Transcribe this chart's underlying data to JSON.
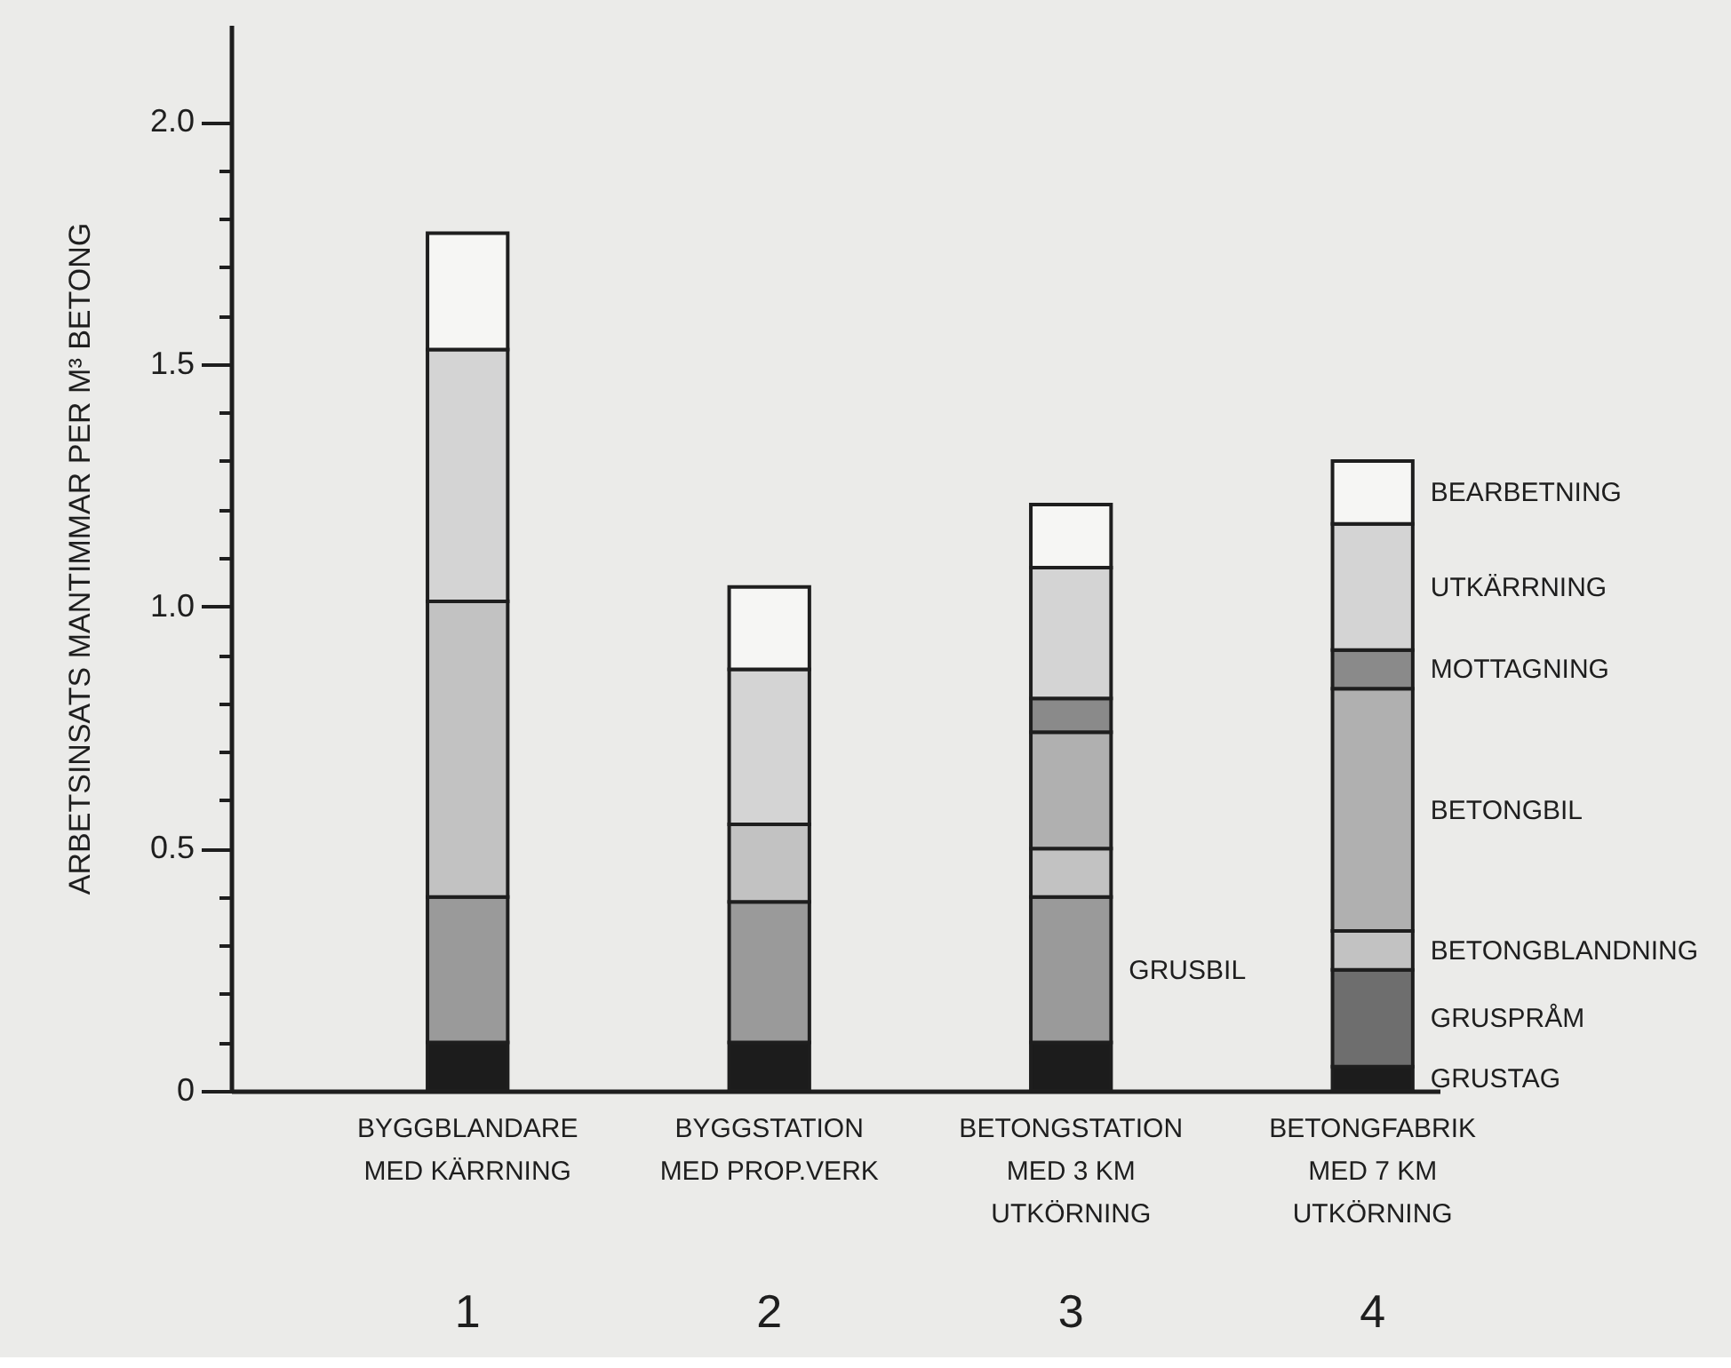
{
  "chart_data": {
    "type": "bar",
    "stacked": true,
    "ylabel": "ARBETSINSATS MANTIMMAR PER M³ BETONG",
    "categories": [
      "BYGGBLANDARE\nMED KÄRRNING\n1",
      "BYGGSTATION\nMED PROP.VERK\n2",
      "BETONGSTATION\nMED 3 KM\nUTKÖRNING\n3",
      "BETONGFABRIK\nMED 7 KM\nUTKÖRNING\n4"
    ],
    "series": [
      {
        "name": "GRUSTAG",
        "color": "#1c1c1c",
        "values": [
          0.1,
          0.1,
          0.1,
          0.05
        ]
      },
      {
        "name": "GRUSPRÅM",
        "color": "#6e6e6e",
        "values": [
          null,
          null,
          null,
          0.2
        ]
      },
      {
        "name": "GRUSBIL",
        "color": "#9a9a9a",
        "values": [
          0.3,
          0.29,
          0.3,
          null
        ]
      },
      {
        "name": "BETONGBLANDNING",
        "color": "#c2c2c2",
        "values": [
          0.61,
          0.16,
          0.1,
          0.08
        ]
      },
      {
        "name": "BETONGBIL",
        "color": "#b0b0b0",
        "values": [
          null,
          null,
          0.24,
          0.5
        ]
      },
      {
        "name": "MOTTAGNING",
        "color": "#8a8a8a",
        "values": [
          null,
          null,
          0.07,
          0.08
        ]
      },
      {
        "name": "UTKÄRRNING",
        "color": "#d4d4d4",
        "values": [
          0.52,
          0.32,
          0.27,
          0.26
        ]
      },
      {
        "name": "BEARBETNING",
        "color": "#f6f6f4",
        "values": [
          0.24,
          0.17,
          0.13,
          0.13
        ]
      }
    ],
    "ylim": [
      0,
      2.2
    ],
    "yticks": [
      0,
      {
        "value": 0.1,
        "label": null
      },
      {
        "value": 0.2,
        "label": null
      },
      {
        "value": 0.3,
        "label": null
      },
      {
        "value": 0.4,
        "label": null
      },
      0.5,
      {
        "value": 0.6,
        "label": null
      },
      {
        "value": 0.7,
        "label": null
      },
      {
        "value": 0.8,
        "label": null
      },
      {
        "value": 0.9,
        "label": null
      },
      {
        "value": 1,
        "label": "1.0"
      },
      {
        "value": 1.1,
        "label": null
      },
      {
        "value": 1.2,
        "label": null
      },
      {
        "value": 1.3,
        "label": null
      },
      {
        "value": 1.4,
        "label": null
      },
      1.5,
      {
        "value": 1.6,
        "label": null
      },
      {
        "value": 1.7,
        "label": null
      },
      {
        "value": 1.8,
        "label": null
      },
      {
        "value": 1.9,
        "label": null
      },
      {
        "value": 2,
        "label": "2.0"
      }
    ]
  }
}
